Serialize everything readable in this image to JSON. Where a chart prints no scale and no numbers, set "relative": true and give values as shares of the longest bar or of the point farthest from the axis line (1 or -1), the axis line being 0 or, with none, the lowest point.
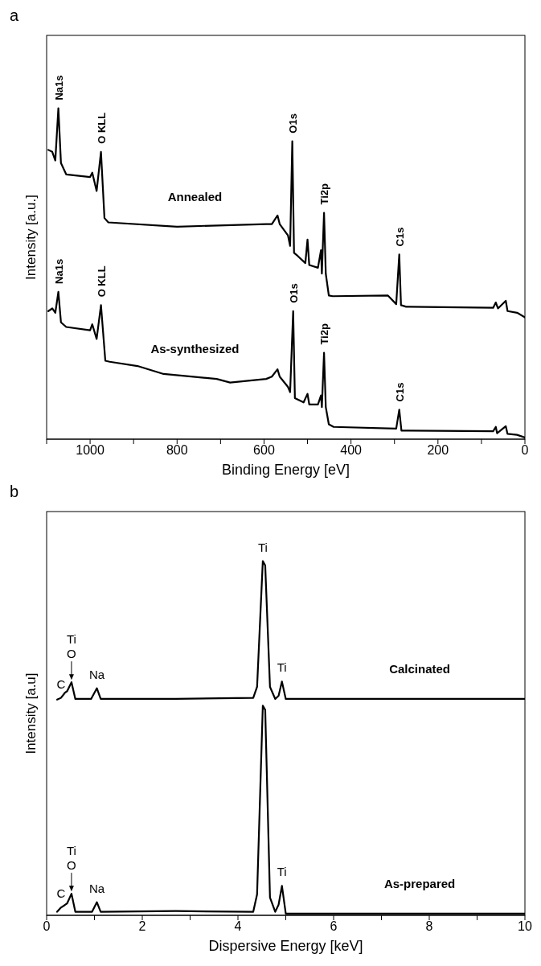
{
  "chart_data": [
    {
      "type": "line",
      "title": "a",
      "xlabel": "Binding Energy [eV]",
      "ylabel": "Intensity [a.u.]",
      "relative": true,
      "xlim": [
        1100,
        0
      ],
      "xticks": [
        {
          "value": 1100,
          "label": null
        },
        1000,
        {
          "value": 900,
          "label": null
        },
        800,
        {
          "value": 700,
          "label": null
        },
        600,
        {
          "value": 500,
          "label": null
        },
        400,
        {
          "value": 300,
          "label": null
        },
        200,
        {
          "value": 100,
          "label": null
        },
        0
      ],
      "series": [
        {
          "name": "Annealed",
          "color": "#000000",
          "x": [
            1096,
            1087,
            1080,
            1073,
            1067,
            1055,
            1000,
            995,
            985,
            975,
            967,
            958,
            800,
            595,
            582,
            569,
            564,
            545,
            540,
            535,
            531,
            522,
            505,
            500,
            496,
            476,
            469,
            467,
            462,
            458,
            451,
            442,
            315,
            296,
            289,
            285,
            273,
            73,
            67,
            62,
            44,
            40,
            18,
            0
          ],
          "values": [
            0.874,
            0.868,
            0.842,
            1.0,
            0.834,
            0.8,
            0.792,
            0.805,
            0.75,
            0.868,
            0.668,
            0.655,
            0.642,
            0.65,
            0.65,
            0.676,
            0.65,
            0.616,
            0.584,
            0.9,
            0.563,
            0.553,
            0.532,
            0.603,
            0.526,
            0.518,
            0.571,
            0.5,
            0.684,
            0.5,
            0.434,
            0.432,
            0.434,
            0.408,
            0.558,
            0.405,
            0.4,
            0.397,
            0.413,
            0.395,
            0.418,
            0.387,
            0.382,
            0.368
          ]
        },
        {
          "name": "As-synthesized",
          "color": "#000000",
          "x": [
            1096,
            1087,
            1080,
            1073,
            1067,
            1055,
            1000,
            995,
            985,
            975,
            965,
            955,
            891,
            831,
            709,
            678,
            595,
            582,
            569,
            564,
            545,
            540,
            533,
            529,
            509,
            500,
            496,
            476,
            469,
            467,
            462,
            458,
            451,
            440,
            296,
            289,
            284,
            73,
            67,
            64,
            44,
            40,
            18,
            0
          ],
          "values": [
            0.387,
            0.395,
            0.382,
            0.445,
            0.353,
            0.339,
            0.329,
            0.347,
            0.303,
            0.405,
            0.237,
            0.234,
            0.221,
            0.197,
            0.182,
            0.171,
            0.182,
            0.189,
            0.211,
            0.189,
            0.158,
            0.142,
            0.387,
            0.124,
            0.111,
            0.137,
            0.105,
            0.105,
            0.132,
            0.097,
            0.261,
            0.097,
            0.045,
            0.037,
            0.032,
            0.089,
            0.026,
            0.024,
            0.037,
            0.018,
            0.039,
            0.016,
            0.013,
            0.005
          ]
        }
      ],
      "annotations": [
        {
          "text": "Na1s",
          "x": 1073,
          "y": 1.0
        },
        {
          "text": "O KLL",
          "x": 975,
          "y": 0.868
        },
        {
          "text": "O1s",
          "x": 535,
          "y": 0.9
        },
        {
          "text": "Ti2p",
          "x": 462,
          "y": 0.684
        },
        {
          "text": "C1s",
          "x": 289,
          "y": 0.558
        },
        {
          "text": "Na1s",
          "x": 1073,
          "y": 0.445
        },
        {
          "text": "O KLL",
          "x": 975,
          "y": 0.405
        },
        {
          "text": "O1s",
          "x": 533,
          "y": 0.387
        },
        {
          "text": "Ti2p",
          "x": 462,
          "y": 0.261
        },
        {
          "text": "C1s",
          "x": 289,
          "y": 0.089
        }
      ]
    },
    {
      "type": "line",
      "title": "b",
      "xlabel": "Dispersive Energy [keV]",
      "ylabel": "Intensity [a.u]",
      "relative": true,
      "xlim": [
        0,
        10
      ],
      "xticks": [
        0,
        {
          "value": 1,
          "label": null
        },
        2,
        {
          "value": 3,
          "label": null
        },
        4,
        {
          "value": 5,
          "label": null
        },
        6,
        {
          "value": 7,
          "label": null
        },
        8,
        {
          "value": 9,
          "label": null
        },
        10
      ],
      "series": [
        {
          "name": "Calcinated",
          "color": "#000000",
          "x": [
            0.22,
            0.3,
            0.38,
            0.43,
            0.52,
            0.6,
            0.93,
            1.05,
            1.13,
            2.7,
            4.32,
            4.4,
            4.52,
            4.57,
            4.67,
            4.78,
            4.85,
            4.92,
            5.0,
            10
          ],
          "values": [
            0.609,
            0.614,
            0.628,
            0.633,
            0.658,
            0.611,
            0.611,
            0.641,
            0.611,
            0.611,
            0.614,
            0.645,
            1.0,
            0.988,
            0.645,
            0.611,
            0.62,
            0.66,
            0.611,
            0.611
          ]
        },
        {
          "name": "As-prepared",
          "color": "#000000",
          "x": [
            0.22,
            0.3,
            0.38,
            0.43,
            0.52,
            0.6,
            0.95,
            1.05,
            1.13,
            2.7,
            4.32,
            4.4,
            4.52,
            4.57,
            4.67,
            4.78,
            4.85,
            4.92,
            5.0,
            10
          ],
          "values": [
            0.01,
            0.022,
            0.029,
            0.034,
            0.061,
            0.01,
            0.01,
            0.037,
            0.01,
            0.012,
            0.01,
            0.059,
            0.592,
            0.58,
            0.05,
            0.01,
            0.03,
            0.083,
            0.005,
            0.005
          ]
        }
      ],
      "annotations": [
        {
          "text": "C",
          "x": 0.3,
          "y": 0.614
        },
        {
          "text": "Ti",
          "x": 0.52,
          "y": 0.658
        },
        {
          "text": "O",
          "x": 0.52,
          "y": 0.658
        },
        {
          "text": "Na",
          "x": 1.05,
          "y": 0.641
        },
        {
          "text": "Ti",
          "x": 4.52,
          "y": 1.0
        },
        {
          "text": "Ti",
          "x": 4.92,
          "y": 0.66
        },
        {
          "text": "C",
          "x": 0.3,
          "y": 0.022
        },
        {
          "text": "Ti",
          "x": 0.52,
          "y": 0.061
        },
        {
          "text": "O",
          "x": 0.52,
          "y": 0.061
        },
        {
          "text": "Na",
          "x": 1.05,
          "y": 0.037
        },
        {
          "text": "Ti",
          "x": 4.92,
          "y": 0.083
        }
      ]
    }
  ]
}
